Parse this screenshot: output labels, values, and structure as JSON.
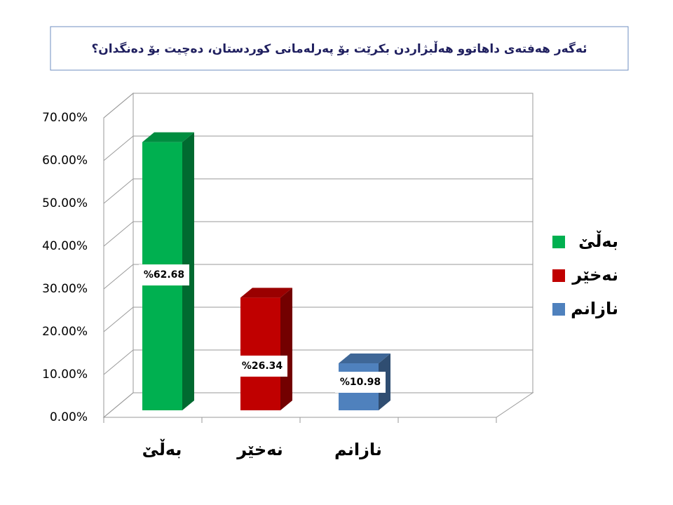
{
  "chart_data": {
    "type": "bar3d",
    "title": "ئەگەر هەفتەی داهاتوو هەڵبژاردن بکرێت بۆ پەرلەمانی کوردستان، دەچیت بۆ دەنگدان؟",
    "categories": [
      "بەڵێ",
      "نەخێر",
      "نازانم"
    ],
    "values": [
      62.68,
      26.34,
      10.98
    ],
    "value_labels": [
      "%62.68",
      "%26.34",
      "%10.98"
    ],
    "colors": [
      "#00b050",
      "#c00000",
      "#4f81bd"
    ],
    "ylim": [
      0,
      70
    ],
    "yticks": [
      {
        "value": 0,
        "label": "0.00%"
      },
      {
        "value": 10,
        "label": "10.00%"
      },
      {
        "value": 20,
        "label": "20.00%"
      },
      {
        "value": 30,
        "label": "30.00%"
      },
      {
        "value": 40,
        "label": "40.00%"
      },
      {
        "value": 50,
        "label": "50.00%"
      },
      {
        "value": 60,
        "label": "60.00%"
      },
      {
        "value": 70,
        "label": "70.00%"
      }
    ],
    "grid": true,
    "legend": "right"
  }
}
